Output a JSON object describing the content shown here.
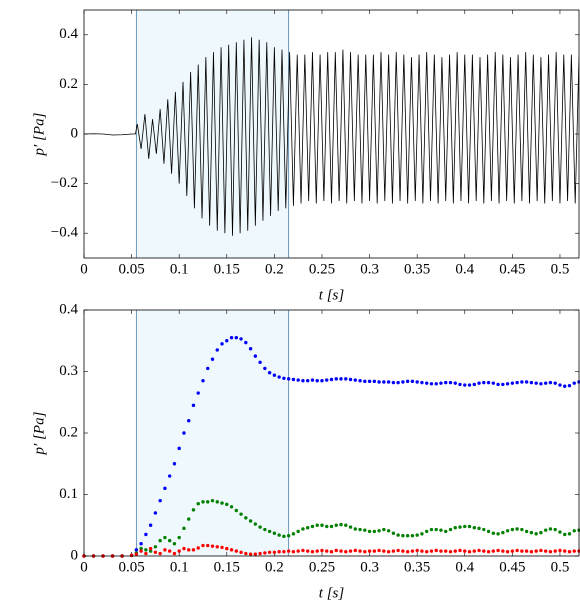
{
  "chart_data": [
    {
      "type": "line",
      "xlabel": "t [s]",
      "ylabel": "p′ [Pa]",
      "xlim": [
        0,
        0.52
      ],
      "ylim": [
        -0.5,
        0.5
      ],
      "xticks": [
        0,
        0.05,
        0.1,
        0.15,
        0.2,
        0.25,
        0.3,
        0.35,
        0.4,
        0.45,
        0.5
      ],
      "yticks": [
        {
          "value": -0.4,
          "label": "−0.4"
        },
        {
          "value": -0.2,
          "label": "−0.2"
        },
        0,
        0.2,
        0.4
      ],
      "shaded_region": [
        0.055,
        0.215
      ],
      "shade_color": "#eff8fc",
      "shade_edge_color": "#4a7fa8",
      "color": "#000000",
      "x": [
        0,
        0.01,
        0.02,
        0.03,
        0.04,
        0.05,
        0.054,
        0.056,
        0.06,
        0.064,
        0.068,
        0.072,
        0.076,
        0.08,
        0.084,
        0.088,
        0.092,
        0.096,
        0.1,
        0.104,
        0.108,
        0.112,
        0.116,
        0.12,
        0.124,
        0.128,
        0.132,
        0.136,
        0.14,
        0.144,
        0.148,
        0.152,
        0.156,
        0.16,
        0.164,
        0.168,
        0.172,
        0.176,
        0.18,
        0.184,
        0.188,
        0.192,
        0.196,
        0.2,
        0.204,
        0.208,
        0.212,
        0.216,
        0.22,
        0.224,
        0.228,
        0.232,
        0.236,
        0.24,
        0.244,
        0.248,
        0.252,
        0.256,
        0.26,
        0.264,
        0.268,
        0.272,
        0.276,
        0.28,
        0.284,
        0.288,
        0.292,
        0.296,
        0.3,
        0.304,
        0.308,
        0.312,
        0.316,
        0.32,
        0.324,
        0.328,
        0.332,
        0.336,
        0.34,
        0.344,
        0.348,
        0.352,
        0.356,
        0.36,
        0.364,
        0.368,
        0.372,
        0.376,
        0.38,
        0.384,
        0.388,
        0.392,
        0.396,
        0.4,
        0.404,
        0.408,
        0.412,
        0.416,
        0.42,
        0.424,
        0.428,
        0.432,
        0.436,
        0.44,
        0.444,
        0.448,
        0.452,
        0.456,
        0.46,
        0.464,
        0.468,
        0.472,
        0.476,
        0.48,
        0.484,
        0.488,
        0.492,
        0.496,
        0.5,
        0.504,
        0.508,
        0.512,
        0.516,
        0.52
      ],
      "values": [
        0,
        0.001,
        0,
        -0.004,
        -0.003,
        0,
        0,
        0.04,
        -0.06,
        0.08,
        -0.1,
        0.06,
        -0.08,
        0.1,
        -0.12,
        0.14,
        -0.16,
        0.17,
        -0.2,
        0.21,
        -0.25,
        0.25,
        -0.3,
        0.28,
        -0.34,
        0.31,
        -0.37,
        0.33,
        -0.39,
        0.35,
        -0.4,
        0.36,
        -0.41,
        0.37,
        -0.4,
        0.38,
        -0.39,
        0.39,
        -0.37,
        0.38,
        -0.35,
        0.37,
        -0.33,
        0.35,
        -0.31,
        0.34,
        -0.3,
        0.33,
        -0.29,
        0.32,
        -0.28,
        0.32,
        -0.27,
        0.33,
        -0.28,
        0.32,
        -0.27,
        0.33,
        -0.28,
        0.33,
        -0.27,
        0.34,
        -0.28,
        0.33,
        -0.27,
        0.32,
        -0.28,
        0.32,
        -0.27,
        0.32,
        -0.28,
        0.33,
        -0.27,
        0.32,
        -0.28,
        0.33,
        -0.27,
        0.32,
        -0.28,
        0.31,
        -0.27,
        0.32,
        -0.28,
        0.33,
        -0.27,
        0.32,
        -0.28,
        0.31,
        -0.27,
        0.32,
        -0.28,
        0.33,
        -0.27,
        0.32,
        -0.28,
        0.32,
        -0.27,
        0.31,
        -0.28,
        0.32,
        -0.27,
        0.33,
        -0.28,
        0.32,
        -0.27,
        0.31,
        -0.28,
        0.32,
        -0.27,
        0.33,
        -0.28,
        0.32,
        -0.27,
        0.31,
        -0.28,
        0.32,
        -0.27,
        0.33,
        -0.28,
        0.32,
        -0.27,
        0.32,
        -0.28,
        0.31
      ]
    },
    {
      "type": "scatter",
      "xlabel": "t [s]",
      "ylabel": "p′ [Pa]",
      "xlim": [
        0,
        0.52
      ],
      "ylim": [
        0,
        0.4
      ],
      "xticks": [
        0,
        0.05,
        0.1,
        0.15,
        0.2,
        0.25,
        0.3,
        0.35,
        0.4,
        0.45,
        0.5
      ],
      "yticks": [
        0,
        0.1,
        0.2,
        0.3,
        0.4
      ],
      "shaded_region": [
        0.055,
        0.215
      ],
      "shade_color": "#eff8fc",
      "shade_edge_color": "#4a7fa8",
      "x": [
        0,
        0.01,
        0.02,
        0.03,
        0.04,
        0.05,
        0.055,
        0.06,
        0.065,
        0.07,
        0.075,
        0.08,
        0.085,
        0.09,
        0.095,
        0.1,
        0.105,
        0.11,
        0.115,
        0.12,
        0.125,
        0.13,
        0.135,
        0.14,
        0.145,
        0.15,
        0.155,
        0.16,
        0.165,
        0.17,
        0.175,
        0.18,
        0.185,
        0.19,
        0.195,
        0.2,
        0.205,
        0.21,
        0.215,
        0.22,
        0.225,
        0.23,
        0.235,
        0.24,
        0.245,
        0.25,
        0.255,
        0.26,
        0.265,
        0.27,
        0.275,
        0.28,
        0.285,
        0.29,
        0.295,
        0.3,
        0.305,
        0.31,
        0.315,
        0.32,
        0.325,
        0.33,
        0.335,
        0.34,
        0.345,
        0.35,
        0.355,
        0.36,
        0.365,
        0.37,
        0.375,
        0.38,
        0.385,
        0.39,
        0.395,
        0.4,
        0.405,
        0.41,
        0.415,
        0.42,
        0.425,
        0.43,
        0.435,
        0.44,
        0.445,
        0.45,
        0.455,
        0.46,
        0.465,
        0.47,
        0.475,
        0.48,
        0.485,
        0.49,
        0.495,
        0.5,
        0.505,
        0.51,
        0.515,
        0.52
      ],
      "series": [
        {
          "color": "#0000ff",
          "values": [
            0,
            0,
            0,
            0,
            0,
            0.001,
            0.01,
            0.02,
            0.035,
            0.05,
            0.07,
            0.09,
            0.11,
            0.13,
            0.15,
            0.175,
            0.2,
            0.22,
            0.245,
            0.265,
            0.285,
            0.305,
            0.32,
            0.335,
            0.345,
            0.35,
            0.355,
            0.355,
            0.353,
            0.347,
            0.337,
            0.325,
            0.315,
            0.305,
            0.298,
            0.294,
            0.291,
            0.289,
            0.288,
            0.287,
            0.286,
            0.285,
            0.285,
            0.286,
            0.285,
            0.285,
            0.286,
            0.287,
            0.288,
            0.288,
            0.288,
            0.287,
            0.286,
            0.285,
            0.284,
            0.284,
            0.284,
            0.283,
            0.283,
            0.283,
            0.282,
            0.282,
            0.283,
            0.284,
            0.284,
            0.283,
            0.282,
            0.281,
            0.28,
            0.28,
            0.281,
            0.282,
            0.282,
            0.281,
            0.279,
            0.278,
            0.278,
            0.279,
            0.281,
            0.282,
            0.282,
            0.281,
            0.279,
            0.279,
            0.28,
            0.281,
            0.282,
            0.283,
            0.283,
            0.282,
            0.281,
            0.28,
            0.281,
            0.282,
            0.281,
            0.278,
            0.276,
            0.277,
            0.281,
            0.283
          ]
        },
        {
          "color": "#008000",
          "values": [
            0,
            0,
            0,
            0,
            0,
            0.001,
            0.005,
            0.012,
            0.01,
            0.008,
            0.015,
            0.025,
            0.03,
            0.025,
            0.02,
            0.03,
            0.045,
            0.06,
            0.075,
            0.085,
            0.088,
            0.088,
            0.09,
            0.088,
            0.086,
            0.084,
            0.08,
            0.074,
            0.068,
            0.062,
            0.057,
            0.052,
            0.047,
            0.043,
            0.04,
            0.037,
            0.034,
            0.032,
            0.033,
            0.036,
            0.04,
            0.044,
            0.046,
            0.048,
            0.05,
            0.05,
            0.048,
            0.048,
            0.05,
            0.051,
            0.05,
            0.047,
            0.044,
            0.043,
            0.042,
            0.04,
            0.04,
            0.041,
            0.043,
            0.041,
            0.037,
            0.034,
            0.033,
            0.033,
            0.033,
            0.034,
            0.036,
            0.04,
            0.043,
            0.043,
            0.042,
            0.04,
            0.043,
            0.046,
            0.047,
            0.048,
            0.048,
            0.046,
            0.045,
            0.043,
            0.04,
            0.037,
            0.036,
            0.038,
            0.041,
            0.043,
            0.044,
            0.043,
            0.04,
            0.038,
            0.036,
            0.038,
            0.042,
            0.044,
            0.043,
            0.039,
            0.035,
            0.036,
            0.041,
            0.042
          ]
        },
        {
          "color": "#ff0000",
          "values": [
            0,
            0,
            0,
            0,
            0,
            0.001,
            0.003,
            0.008,
            0.004,
            0.012,
            0.006,
            0.004,
            0.01,
            0.008,
            0.004,
            0.008,
            0.012,
            0.01,
            0.01,
            0.013,
            0.017,
            0.017,
            0.016,
            0.015,
            0.014,
            0.012,
            0.01,
            0.008,
            0.006,
            0.004,
            0.003,
            0.003,
            0.004,
            0.005,
            0.006,
            0.006,
            0.007,
            0.007,
            0.008,
            0.007,
            0.008,
            0.009,
            0.008,
            0.007,
            0.008,
            0.009,
            0.008,
            0.007,
            0.009,
            0.008,
            0.007,
            0.008,
            0.009,
            0.008,
            0.007,
            0.008,
            0.008,
            0.009,
            0.008,
            0.007,
            0.008,
            0.009,
            0.008,
            0.007,
            0.008,
            0.009,
            0.008,
            0.007,
            0.008,
            0.009,
            0.008,
            0.008,
            0.007,
            0.008,
            0.009,
            0.008,
            0.007,
            0.008,
            0.009,
            0.008,
            0.007,
            0.008,
            0.009,
            0.008,
            0.007,
            0.008,
            0.009,
            0.008,
            0.008,
            0.007,
            0.008,
            0.009,
            0.008,
            0.007,
            0.008,
            0.009,
            0.008,
            0.007,
            0.008,
            0.008
          ]
        }
      ]
    }
  ]
}
